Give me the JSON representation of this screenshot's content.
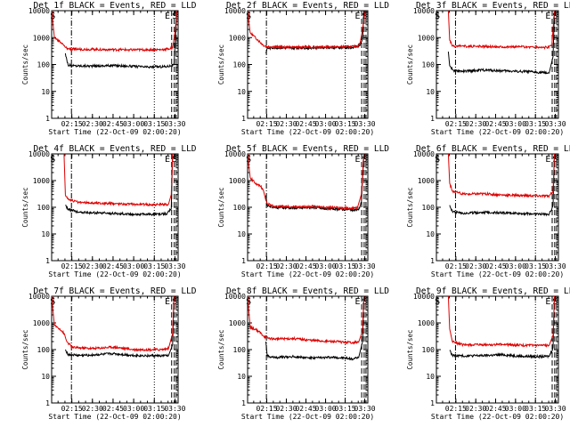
{
  "chart_data": [
    {
      "type": "line",
      "title": "Det 1f BLACK = Events, RED = LLD",
      "xlabel": "Start Time (22-Oct-09 02:00:20)",
      "ylabel": "Counts/sec",
      "xticks": [
        "02:15",
        "02:30",
        "02:45",
        "03:00",
        "03:15",
        "03:30"
      ],
      "yticks": [
        "1",
        "10",
        "100",
        "1000",
        "10000"
      ],
      "ylim": [
        1,
        10000
      ],
      "y_scale": "log",
      "markers": [
        "S",
        "E",
        "S"
      ],
      "series": [
        {
          "name": "BLACK = Events",
          "color": "#000000",
          "points": [
            [
              10,
              260
            ],
            [
              11,
              150
            ],
            [
              12,
              95
            ],
            [
              15,
              90
            ],
            [
              30,
              88
            ],
            [
              45,
              92
            ],
            [
              60,
              85
            ],
            [
              70,
              80
            ],
            [
              84,
              85
            ],
            [
              89,
              98
            ],
            [
              91,
              9000
            ],
            [
              92,
              10000
            ]
          ]
        },
        {
          "name": "RED = LLD",
          "color": "#dd0000",
          "points": [
            [
              0,
              10000
            ],
            [
              2,
              1000
            ],
            [
              6,
              700
            ],
            [
              9,
              500
            ],
            [
              10,
              430
            ],
            [
              12,
              380
            ],
            [
              20,
              370
            ],
            [
              40,
              360
            ],
            [
              60,
              350
            ],
            [
              80,
              355
            ],
            [
              85,
              380
            ],
            [
              88,
              400
            ],
            [
              90,
              2000
            ],
            [
              91,
              10000
            ]
          ]
        }
      ]
    },
    {
      "type": "line",
      "title": "Det 2f BLACK = Events, RED = LLD",
      "xlabel": "Start Time (22-Oct-09 02:00:20)",
      "ylabel": "Counts/sec",
      "xticks": [
        "02:15",
        "02:30",
        "02:45",
        "03:00",
        "03:15",
        "03:30"
      ],
      "yticks": [
        "1",
        "10",
        "100",
        "1000",
        "10000"
      ],
      "ylim": [
        1,
        10000
      ],
      "y_scale": "log",
      "markers": [
        "S",
        "E",
        "S"
      ],
      "series": [
        {
          "name": "BLACK = Events",
          "color": "#000000",
          "points": [
            [
              14,
              260
            ],
            [
              15,
              400
            ],
            [
              20,
              420
            ],
            [
              40,
              410
            ],
            [
              60,
              430
            ],
            [
              80,
              420
            ],
            [
              86,
              500
            ],
            [
              88,
              900
            ],
            [
              89,
              10000
            ]
          ]
        },
        {
          "name": "RED = LLD",
          "color": "#dd0000",
          "points": [
            [
              0,
              10000
            ],
            [
              2,
              1500
            ],
            [
              8,
              800
            ],
            [
              12,
              520
            ],
            [
              15,
              460
            ],
            [
              30,
              440
            ],
            [
              50,
              450
            ],
            [
              70,
              450
            ],
            [
              84,
              460
            ],
            [
              86,
              600
            ],
            [
              88,
              2000
            ],
            [
              90,
              10000
            ]
          ]
        }
      ]
    },
    {
      "type": "line",
      "title": "Det 3f BLACK = Events, RED = LLD",
      "xlabel": "Start Time (22-Oct-09 02:00:20)",
      "ylabel": "Counts/sec",
      "xticks": [
        "02:15",
        "02:30",
        "02:45",
        "03:00",
        "03:15",
        "03:30"
      ],
      "yticks": [
        "1",
        "10",
        "100",
        "1000",
        "10000"
      ],
      "ylim": [
        1,
        10000
      ],
      "y_scale": "log",
      "markers": [
        "S",
        "E",
        "S"
      ],
      "series": [
        {
          "name": "BLACK = Events",
          "color": "#000000",
          "points": [
            [
              9,
              300
            ],
            [
              10,
              90
            ],
            [
              13,
              60
            ],
            [
              20,
              55
            ],
            [
              35,
              62
            ],
            [
              50,
              58
            ],
            [
              65,
              55
            ],
            [
              80,
              50
            ],
            [
              85,
              48
            ],
            [
              88,
              200
            ],
            [
              89,
              10000
            ]
          ]
        },
        {
          "name": "RED = LLD",
          "color": "#dd0000",
          "points": [
            [
              9,
              10000
            ],
            [
              10,
              800
            ],
            [
              12,
              480
            ],
            [
              30,
              470
            ],
            [
              50,
              460
            ],
            [
              70,
              450
            ],
            [
              84,
              430
            ],
            [
              87,
              500
            ],
            [
              89,
              10000
            ]
          ]
        }
      ]
    },
    {
      "type": "line",
      "title": "Det 4f BLACK = Events, RED = LLD",
      "xlabel": "Start Time (22-Oct-09 02:00:20)",
      "ylabel": "Counts/sec",
      "xticks": [
        "02:15",
        "02:30",
        "02:45",
        "03:00",
        "03:15",
        "03:30"
      ],
      "yticks": [
        "1",
        "10",
        "100",
        "1000",
        "10000"
      ],
      "ylim": [
        1,
        10000
      ],
      "y_scale": "log",
      "markers": [
        "S",
        "E",
        "S"
      ],
      "series": [
        {
          "name": "BLACK = Events",
          "color": "#000000",
          "points": [
            [
              10,
              120
            ],
            [
              12,
              85
            ],
            [
              20,
              65
            ],
            [
              40,
              60
            ],
            [
              60,
              55
            ],
            [
              80,
              55
            ],
            [
              84,
              58
            ],
            [
              87,
              90
            ],
            [
              88,
              10000
            ]
          ]
        },
        {
          "name": "RED = LLD",
          "color": "#dd0000",
          "points": [
            [
              9,
              10000
            ],
            [
              10,
              300
            ],
            [
              12,
              200
            ],
            [
              20,
              150
            ],
            [
              40,
              140
            ],
            [
              60,
              130
            ],
            [
              80,
              125
            ],
            [
              85,
              130
            ],
            [
              87,
              300
            ],
            [
              88,
              10000
            ]
          ]
        }
      ]
    },
    {
      "type": "line",
      "title": "Det 5f BLACK = Events, RED = LLD",
      "xlabel": "Start Time (22-Oct-09 02:00:20)",
      "ylabel": "Counts/sec",
      "xticks": [
        "02:15",
        "02:30",
        "02:45",
        "03:00",
        "03:15",
        "03:30"
      ],
      "yticks": [
        "1",
        "10",
        "100",
        "1000",
        "10000"
      ],
      "ylim": [
        1,
        10000
      ],
      "y_scale": "log",
      "markers": [
        "S",
        "E",
        "S"
      ],
      "series": [
        {
          "name": "BLACK = Events",
          "color": "#000000",
          "points": [
            [
              14,
              280
            ],
            [
              15,
              120
            ],
            [
              20,
              100
            ],
            [
              40,
              92
            ],
            [
              50,
              100
            ],
            [
              60,
              90
            ],
            [
              75,
              82
            ],
            [
              85,
              80
            ],
            [
              87,
              150
            ],
            [
              89,
              10000
            ]
          ]
        },
        {
          "name": "RED = LLD",
          "color": "#dd0000",
          "points": [
            [
              0,
              10000
            ],
            [
              2,
              1300
            ],
            [
              6,
              800
            ],
            [
              10,
              600
            ],
            [
              12,
              450
            ],
            [
              14,
              180
            ],
            [
              15,
              140
            ],
            [
              20,
              110
            ],
            [
              40,
              100
            ],
            [
              50,
              108
            ],
            [
              60,
              100
            ],
            [
              80,
              90
            ],
            [
              84,
              95
            ],
            [
              87,
              300
            ],
            [
              89,
              10000
            ]
          ]
        }
      ]
    },
    {
      "type": "line",
      "title": "Det 6f BLACK = Events, RED = LLD",
      "xlabel": "Start Time (22-Oct-09 02:00:20)",
      "ylabel": "Counts/sec",
      "xticks": [
        "02:15",
        "02:30",
        "02:45",
        "03:00",
        "03:15",
        "03:30"
      ],
      "yticks": [
        "1",
        "10",
        "100",
        "1000",
        "10000"
      ],
      "ylim": [
        1,
        10000
      ],
      "y_scale": "log",
      "markers": [
        "S",
        "E",
        "S"
      ],
      "series": [
        {
          "name": "BLACK = Events",
          "color": "#000000",
          "points": [
            [
              10,
              120
            ],
            [
              12,
              70
            ],
            [
              20,
              60
            ],
            [
              35,
              65
            ],
            [
              50,
              62
            ],
            [
              65,
              58
            ],
            [
              80,
              55
            ],
            [
              85,
              56
            ],
            [
              88,
              120
            ],
            [
              89,
              10000
            ]
          ]
        },
        {
          "name": "RED = LLD",
          "color": "#dd0000",
          "points": [
            [
              9,
              10000
            ],
            [
              10,
              800
            ],
            [
              12,
              400
            ],
            [
              20,
              310
            ],
            [
              35,
              320
            ],
            [
              50,
              290
            ],
            [
              70,
              270
            ],
            [
              85,
              265
            ],
            [
              88,
              400
            ],
            [
              89,
              10000
            ]
          ]
        }
      ]
    },
    {
      "type": "line",
      "title": "Det 7f BLACK = Events, RED = LLD",
      "xlabel": "Start Time (22-Oct-09 02:00:20)",
      "ylabel": "Counts/sec",
      "xticks": [
        "02:15",
        "02:30",
        "02:45",
        "03:00",
        "03:15",
        "03:30"
      ],
      "yticks": [
        "1",
        "10",
        "100",
        "1000",
        "10000"
      ],
      "ylim": [
        1,
        10000
      ],
      "y_scale": "log",
      "markers": [
        "S",
        "E",
        "S"
      ],
      "series": [
        {
          "name": "BLACK = Events",
          "color": "#000000",
          "points": [
            [
              10,
              100
            ],
            [
              12,
              65
            ],
            [
              20,
              60
            ],
            [
              35,
              65
            ],
            [
              45,
              70
            ],
            [
              60,
              60
            ],
            [
              80,
              58
            ],
            [
              85,
              60
            ],
            [
              88,
              150
            ],
            [
              89,
              10000
            ]
          ]
        },
        {
          "name": "RED = LLD",
          "color": "#dd0000",
          "points": [
            [
              0,
              10000
            ],
            [
              2,
              800
            ],
            [
              6,
              600
            ],
            [
              9,
              400
            ],
            [
              11,
              200
            ],
            [
              15,
              120
            ],
            [
              30,
              110
            ],
            [
              45,
              125
            ],
            [
              60,
              100
            ],
            [
              80,
              100
            ],
            [
              85,
              110
            ],
            [
              88,
              400
            ],
            [
              89,
              10000
            ]
          ]
        }
      ]
    },
    {
      "type": "line",
      "title": "Det 8f BLACK = Events, RED = LLD",
      "xlabel": "Start Time (22-Oct-09 02:00:20)",
      "ylabel": "Counts/sec",
      "xticks": [
        "02:15",
        "02:30",
        "02:45",
        "03:00",
        "03:15",
        "03:30"
      ],
      "yticks": [
        "1",
        "10",
        "100",
        "1000",
        "10000"
      ],
      "ylim": [
        1,
        10000
      ],
      "y_scale": "log",
      "markers": [
        "S",
        "E",
        "S"
      ],
      "series": [
        {
          "name": "BLACK = Events",
          "color": "#000000",
          "points": [
            [
              14,
              200
            ],
            [
              15,
              60
            ],
            [
              20,
              50
            ],
            [
              35,
              55
            ],
            [
              50,
              48
            ],
            [
              65,
              52
            ],
            [
              80,
              45
            ],
            [
              85,
              50
            ],
            [
              88,
              200
            ],
            [
              89,
              10000
            ]
          ]
        },
        {
          "name": "RED = LLD",
          "color": "#dd0000",
          "points": [
            [
              0,
              10000
            ],
            [
              2,
              700
            ],
            [
              8,
              500
            ],
            [
              14,
              280
            ],
            [
              20,
              250
            ],
            [
              35,
              260
            ],
            [
              50,
              220
            ],
            [
              65,
              200
            ],
            [
              80,
              185
            ],
            [
              85,
              190
            ],
            [
              88,
              500
            ],
            [
              89,
              10000
            ]
          ]
        }
      ]
    },
    {
      "type": "line",
      "title": "Det 9f BLACK = Events, RED = LLD",
      "xlabel": "Start Time (22-Oct-09 02:00:20)",
      "ylabel": "Counts/sec",
      "xticks": [
        "02:15",
        "02:30",
        "02:45",
        "03:00",
        "03:15",
        "03:30"
      ],
      "yticks": [
        "1",
        "10",
        "100",
        "1000",
        "10000"
      ],
      "ylim": [
        1,
        10000
      ],
      "y_scale": "log",
      "markers": [
        "S",
        "E",
        "S"
      ],
      "series": [
        {
          "name": "BLACK = Events",
          "color": "#000000",
          "points": [
            [
              10,
              90
            ],
            [
              12,
              62
            ],
            [
              20,
              58
            ],
            [
              35,
              60
            ],
            [
              50,
              64
            ],
            [
              65,
              56
            ],
            [
              80,
              55
            ],
            [
              85,
              56
            ],
            [
              88,
              120
            ],
            [
              89,
              10000
            ]
          ]
        },
        {
          "name": "RED = LLD",
          "color": "#dd0000",
          "points": [
            [
              9,
              10000
            ],
            [
              10,
              600
            ],
            [
              12,
              200
            ],
            [
              20,
              150
            ],
            [
              35,
              150
            ],
            [
              50,
              155
            ],
            [
              65,
              145
            ],
            [
              80,
              140
            ],
            [
              85,
              145
            ],
            [
              88,
              350
            ],
            [
              89,
              10000
            ]
          ]
        }
      ]
    }
  ]
}
